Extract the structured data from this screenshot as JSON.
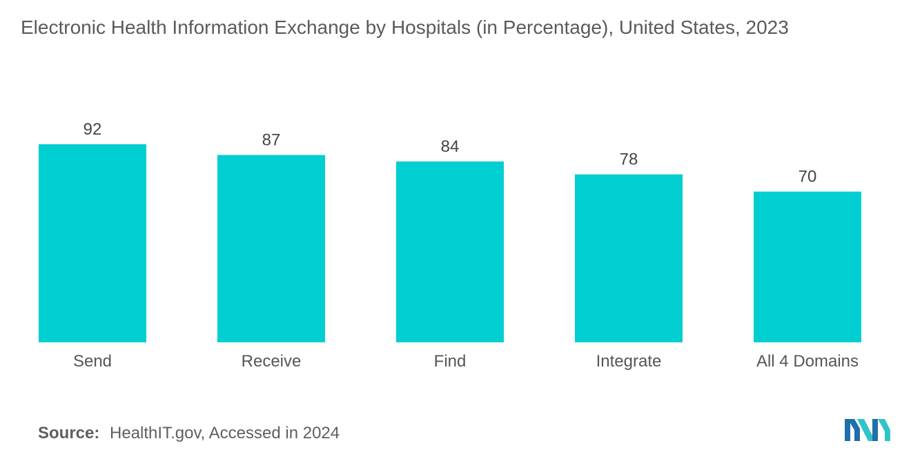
{
  "chart_data": {
    "type": "bar",
    "title": "Electronic Health Information Exchange by Hospitals (in Percentage), United States, 2023",
    "categories": [
      "Send",
      "Receive",
      "Find",
      "Integrate",
      "All 4 Domains"
    ],
    "values": [
      92,
      87,
      84,
      78,
      70
    ],
    "xlabel": "",
    "ylabel": "",
    "ylim": [
      0,
      100
    ],
    "grid": false,
    "legend": "none",
    "bar_color": "#00ced1"
  },
  "source": {
    "label": "Source:",
    "text": "HealthIT.gov, Accessed in 2024"
  },
  "logo": {
    "icon": "mordor-logo-icon",
    "color_left": "#1f6fa8",
    "color_right": "#2ec4c9"
  }
}
